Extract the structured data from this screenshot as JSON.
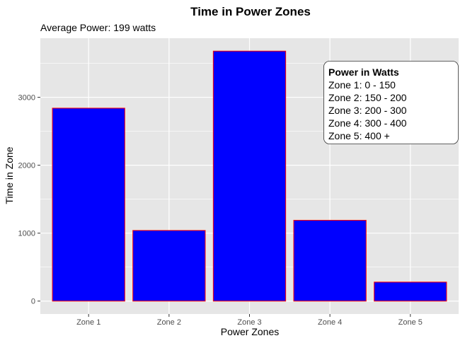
{
  "chart_data": {
    "type": "bar",
    "title": "Time in Power Zones",
    "subtitle": "Average Power: 199 watts",
    "xlabel": "Power Zones",
    "ylabel": "Time in Zone",
    "categories": [
      "Zone 1",
      "Zone 2",
      "Zone 3",
      "Zone 4",
      "Zone 5"
    ],
    "values": [
      2840,
      1040,
      3680,
      1190,
      280
    ],
    "ylim": [
      -190,
      3870
    ],
    "yticks": [
      0,
      1000,
      2000,
      3000
    ],
    "ytick_labels": [
      "0",
      "1000",
      "2000",
      "3000"
    ],
    "grid": true,
    "bar_fill": "#0000ff",
    "bar_outline": "#ff0000",
    "panel_background": "#e6e6e6",
    "grid_color": "#ffffff",
    "legend": {
      "title": "Power in Watts",
      "lines": [
        "Zone 1: 0 - 150",
        "Zone 2: 150 - 200",
        "Zone 3: 200 - 300",
        "Zone 4: 300 - 400",
        "Zone 5: 400 +"
      ],
      "placement": "top-right"
    }
  }
}
